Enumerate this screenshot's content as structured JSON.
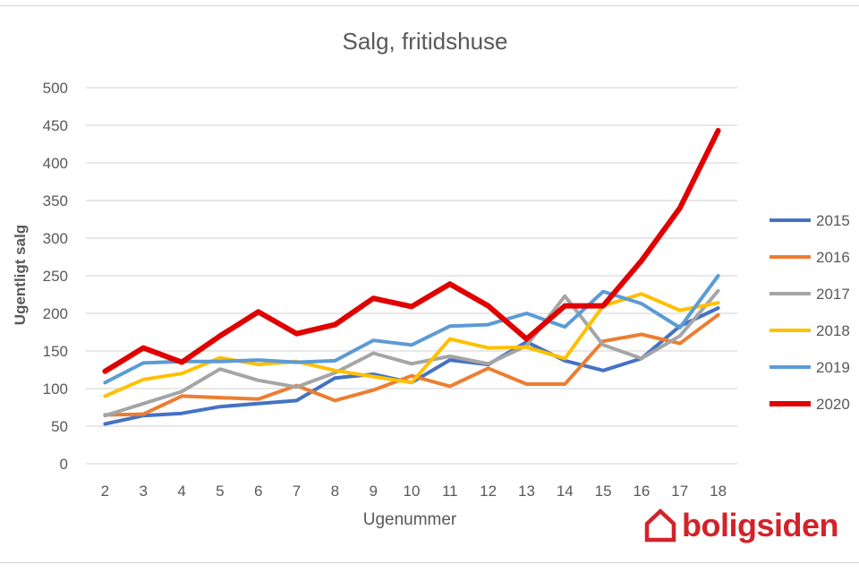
{
  "chart_data": {
    "type": "line",
    "title": "Salg, fritidshuse",
    "xlabel": "Ugenummer",
    "ylabel": "Ugentligt salg",
    "categories": [
      "2",
      "3",
      "4",
      "5",
      "6",
      "7",
      "8",
      "9",
      "10",
      "11",
      "12",
      "13",
      "14",
      "15",
      "16",
      "17",
      "18"
    ],
    "ylim": [
      0,
      500
    ],
    "yticks": [
      "0",
      "50",
      "100",
      "150",
      "200",
      "250",
      "300",
      "350",
      "400",
      "450",
      "500"
    ],
    "grid": true,
    "legend_position": "right",
    "series": [
      {
        "name": "2015",
        "color": "#4472c4",
        "values": [
          53,
          64,
          67,
          76,
          80,
          84,
          114,
          119,
          108,
          138,
          132,
          162,
          137,
          124,
          140,
          183,
          207
        ]
      },
      {
        "name": "2016",
        "color": "#ed7d31",
        "values": [
          65,
          66,
          90,
          88,
          86,
          104,
          84,
          98,
          117,
          103,
          127,
          106,
          106,
          163,
          172,
          160,
          198
        ]
      },
      {
        "name": "2017",
        "color": "#a5a5a5",
        "values": [
          64,
          80,
          96,
          126,
          111,
          102,
          121,
          147,
          133,
          143,
          133,
          157,
          223,
          158,
          140,
          170,
          230
        ]
      },
      {
        "name": "2018",
        "color": "#ffc000",
        "values": [
          90,
          112,
          120,
          141,
          132,
          136,
          124,
          116,
          108,
          166,
          154,
          155,
          140,
          210,
          226,
          204,
          214
        ]
      },
      {
        "name": "2019",
        "color": "#5b9bd5",
        "values": [
          108,
          134,
          136,
          136,
          138,
          135,
          137,
          164,
          158,
          183,
          185,
          200,
          182,
          229,
          213,
          181,
          250
        ]
      },
      {
        "name": "2020",
        "color": "#e00000",
        "values": [
          123,
          154,
          135,
          170,
          202,
          173,
          185,
          220,
          209,
          239,
          210,
          166,
          210,
          210,
          270,
          340,
          443
        ]
      }
    ]
  },
  "brand": {
    "name": "boligsiden",
    "color": "#d2232a"
  }
}
